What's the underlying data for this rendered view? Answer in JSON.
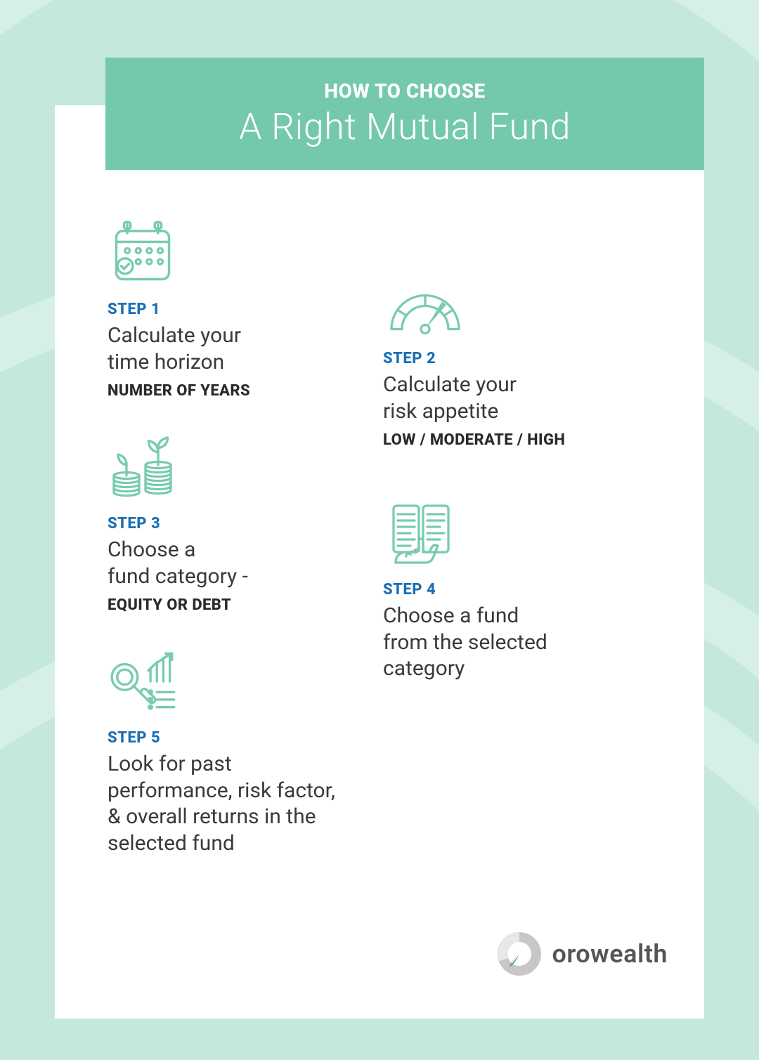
{
  "colors": {
    "background": "#c5e8dd",
    "swirl": "#d7f0e7",
    "card": "#ffffff",
    "banner": "#74c9aa",
    "banner_text": "#ffffff",
    "step_label": "#1a6fb5",
    "step_desc": "#3a3a3a",
    "step_detail": "#2a2a2a",
    "icon_stroke": "#79cbaf",
    "logo_text": "#555555",
    "logo_ring": "#c7c7c7",
    "logo_accent1": "#2f8f6c",
    "logo_accent2": "#1f5f48"
  },
  "header": {
    "line1": "HOW TO CHOOSE",
    "line2": "A Right Mutual Fund"
  },
  "steps": [
    {
      "label": "STEP 1",
      "desc": "Calculate your\ntime horizon",
      "detail": "NUMBER OF YEARS",
      "icon": "calendar"
    },
    {
      "label": "STEP 2",
      "desc": "Calculate your\nrisk appetite",
      "detail": "LOW / MODERATE / HIGH",
      "icon": "gauge"
    },
    {
      "label": "STEP 3",
      "desc": "Choose a\nfund category -",
      "detail": "EQUITY OR DEBT",
      "icon": "growth"
    },
    {
      "label": "STEP 4",
      "desc": "Choose a fund\nfrom the selected\ncategory",
      "detail": "",
      "icon": "document"
    },
    {
      "label": "STEP 5",
      "desc": "Look for past\nperformance, risk factor,\n& overall returns in the\nselected fund",
      "detail": "",
      "icon": "analysis"
    }
  ],
  "brand": {
    "name": "orowealth"
  },
  "typography": {
    "header_line1_size": 28,
    "header_line2_size": 52,
    "step_label_size": 22,
    "step_desc_size": 30,
    "step_detail_size": 22,
    "logo_size": 36
  }
}
